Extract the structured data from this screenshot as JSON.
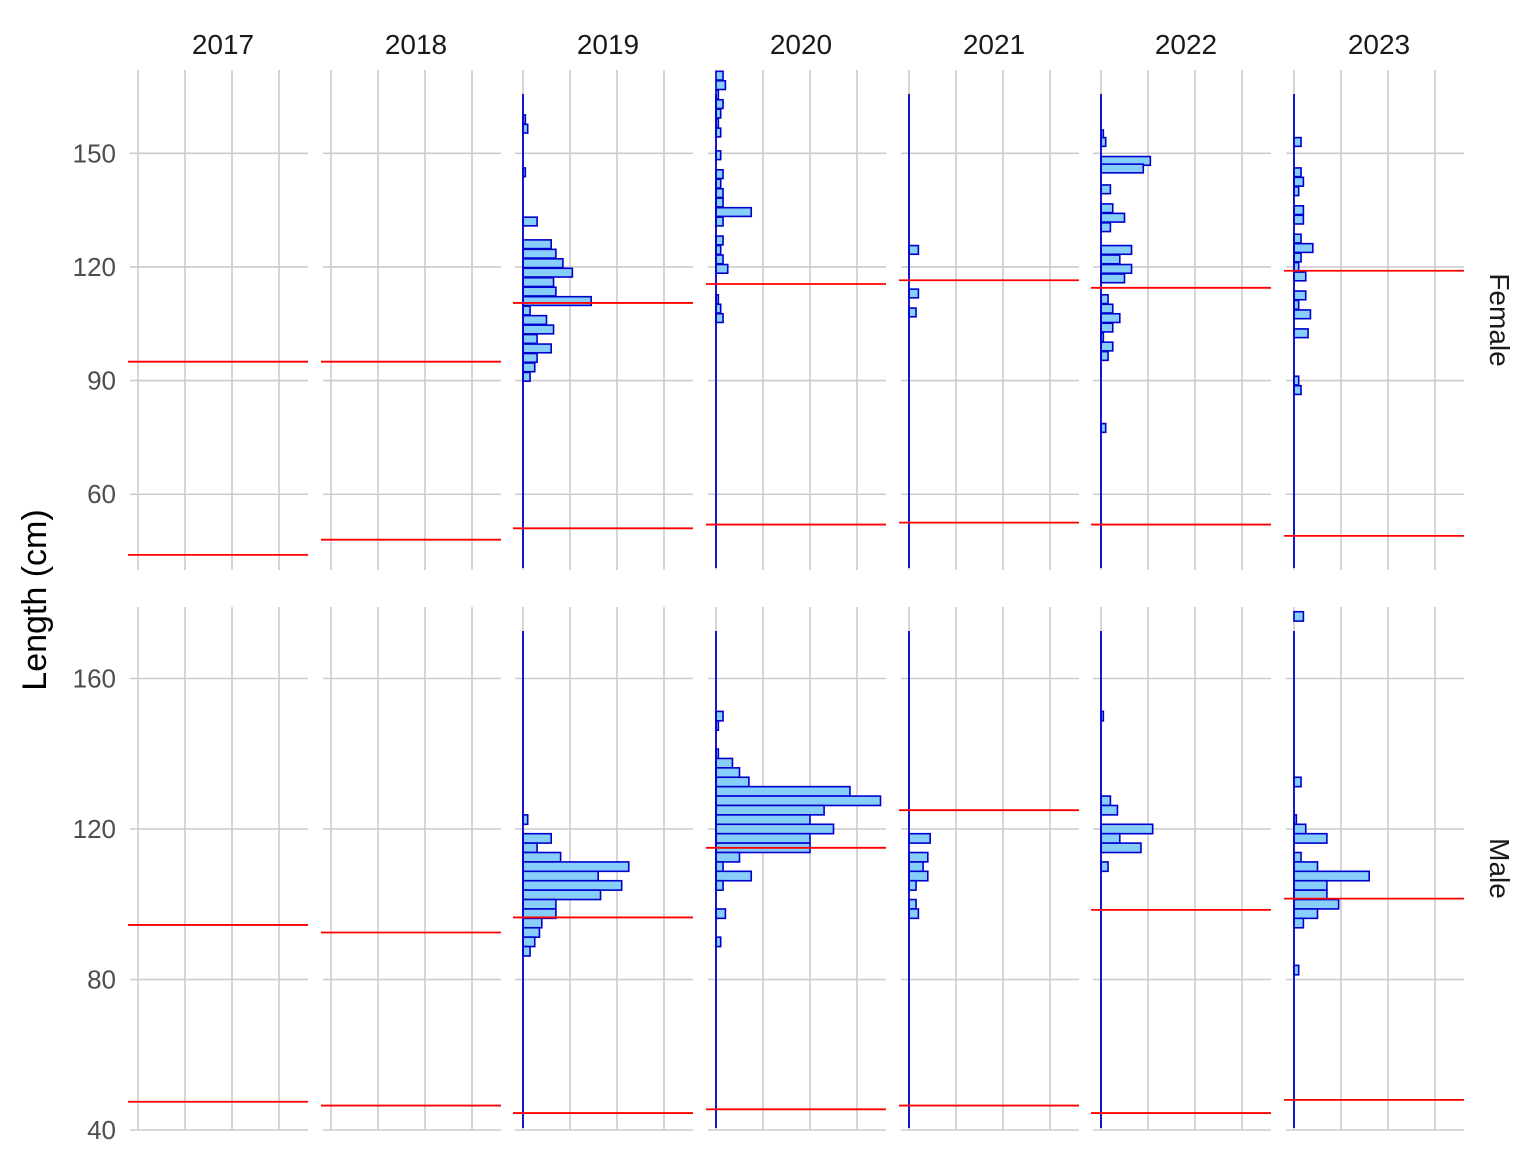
{
  "chart_data": {
    "type": "bar",
    "ylabel": "Length (cm)",
    "xlabel": "",
    "title": "",
    "years": [
      "2017",
      "2018",
      "2019",
      "2020",
      "2021",
      "2022",
      "2023"
    ],
    "rows": [
      {
        "name": "Female",
        "ylim": [
          40,
          172
        ],
        "yticks": [
          60,
          90,
          120,
          150
        ],
        "bin_width": 2.3,
        "panels": [
          {
            "year": "2017",
            "baseline": false,
            "ref_lines": [
              95,
              44
            ],
            "bars": []
          },
          {
            "year": "2018",
            "baseline": false,
            "ref_lines": [
              95,
              48
            ],
            "bars": []
          },
          {
            "year": "2019",
            "baseline": true,
            "ref_lines": [
              110.5,
              51
            ],
            "bars": [
              [
                159,
                0.5
              ],
              [
                156.5,
                1
              ],
              [
                145,
                0.5
              ],
              [
                132,
                3
              ],
              [
                126,
                6
              ],
              [
                123.5,
                7
              ],
              [
                121,
                8.5
              ],
              [
                118.5,
                10.5
              ],
              [
                116,
                6.5
              ],
              [
                113.5,
                7
              ],
              [
                111,
                14.5
              ],
              [
                108.5,
                1.5
              ],
              [
                106,
                5
              ],
              [
                103.5,
                6.5
              ],
              [
                101,
                3
              ],
              [
                98.5,
                6
              ],
              [
                96,
                3
              ],
              [
                93.5,
                2.5
              ],
              [
                91,
                1.5
              ]
            ]
          },
          {
            "year": "2020",
            "baseline": true,
            "ref_lines": [
              115.5,
              52
            ],
            "bars": [
              [
                170.5,
                1.5
              ],
              [
                168,
                2
              ],
              [
                165.5,
                0.5
              ],
              [
                163,
                1.5
              ],
              [
                160.5,
                1
              ],
              [
                158,
                0.5
              ],
              [
                155.5,
                1
              ],
              [
                149.5,
                1
              ],
              [
                144.5,
                1.5
              ],
              [
                142,
                1
              ],
              [
                139.5,
                1.5
              ],
              [
                137,
                1.5
              ],
              [
                134.5,
                7.5
              ],
              [
                132,
                1.5
              ],
              [
                127,
                1.5
              ],
              [
                124.5,
                1
              ],
              [
                122,
                1.5
              ],
              [
                119.5,
                2.5
              ],
              [
                111.5,
                0.5
              ],
              [
                109,
                1
              ],
              [
                106.5,
                1.5
              ]
            ]
          },
          {
            "year": "2021",
            "baseline": true,
            "ref_lines": [
              116.5,
              52.5
            ],
            "bars": [
              [
                124.5,
                2
              ],
              [
                113,
                2
              ],
              [
                108,
                1.5
              ]
            ]
          },
          {
            "year": "2022",
            "baseline": true,
            "ref_lines": [
              114.5,
              52
            ],
            "bars": [
              [
                155,
                0.5
              ],
              [
                153,
                1
              ],
              [
                148,
                10.5
              ],
              [
                146,
                9
              ],
              [
                140.5,
                2
              ],
              [
                135.5,
                2.5
              ],
              [
                133,
                5
              ],
              [
                130.5,
                2
              ],
              [
                124.5,
                6.5
              ],
              [
                122,
                4
              ],
              [
                119.5,
                6.5
              ],
              [
                117,
                5
              ],
              [
                111.5,
                1.5
              ],
              [
                109,
                2.5
              ],
              [
                106.5,
                4
              ],
              [
                104,
                2.5
              ],
              [
                101.5,
                0.5
              ],
              [
                99,
                2.5
              ],
              [
                96.5,
                1.5
              ],
              [
                77.5,
                1
              ]
            ]
          },
          {
            "year": "2023",
            "baseline": true,
            "ref_lines": [
              119,
              49
            ],
            "bars": [
              [
                153,
                1.5
              ],
              [
                145,
                1.5
              ],
              [
                142.5,
                2
              ],
              [
                140,
                1
              ],
              [
                135,
                2
              ],
              [
                132.5,
                2
              ],
              [
                127.5,
                1.5
              ],
              [
                125,
                4
              ],
              [
                122.5,
                1.5
              ],
              [
                120,
                1
              ],
              [
                117.5,
                2.5
              ],
              [
                112.5,
                2.5
              ],
              [
                110,
                1
              ],
              [
                107.5,
                3.5
              ],
              [
                102.5,
                3
              ],
              [
                90,
                1
              ],
              [
                87.5,
                1.5
              ]
            ]
          }
        ]
      },
      {
        "name": "Male",
        "ylim": [
          40,
          179
        ],
        "yticks": [
          40,
          80,
          120,
          160
        ],
        "bin_width": 2.5,
        "panels": [
          {
            "year": "2017",
            "baseline": false,
            "ref_lines": [
              94.5,
              47.5
            ],
            "bars": []
          },
          {
            "year": "2018",
            "baseline": false,
            "ref_lines": [
              92.5,
              46.5
            ],
            "bars": []
          },
          {
            "year": "2019",
            "baseline": true,
            "ref_lines": [
              96.5,
              44.5
            ],
            "bars": [
              [
                122.5,
                1
              ],
              [
                117.5,
                6
              ],
              [
                115,
                3
              ],
              [
                112.5,
                8
              ],
              [
                110,
                22.5
              ],
              [
                107.5,
                16
              ],
              [
                105,
                21
              ],
              [
                102.5,
                16.5
              ],
              [
                100,
                7
              ],
              [
                97.5,
                7
              ],
              [
                95,
                4
              ],
              [
                92.5,
                3.5
              ],
              [
                90,
                2.5
              ],
              [
                87.5,
                1.5
              ]
            ]
          },
          {
            "year": "2020",
            "baseline": true,
            "ref_lines": [
              115,
              45.5
            ],
            "bars": [
              [
                150,
                1.5
              ],
              [
                147.5,
                0.5
              ],
              [
                140,
                0.5
              ],
              [
                137.5,
                3.5
              ],
              [
                135,
                5
              ],
              [
                132.5,
                7
              ],
              [
                130,
                28.5
              ],
              [
                127.5,
                35
              ],
              [
                125,
                23
              ],
              [
                122.5,
                20
              ],
              [
                120,
                25
              ],
              [
                117.5,
                20
              ],
              [
                115,
                20
              ],
              [
                112.5,
                5
              ],
              [
                110,
                1.5
              ],
              [
                107.5,
                7.5
              ],
              [
                105,
                1.5
              ],
              [
                97.5,
                2
              ],
              [
                90,
                1
              ]
            ]
          },
          {
            "year": "2021",
            "baseline": true,
            "ref_lines": [
              125,
              46.5
            ],
            "bars": [
              [
                117.5,
                4.5
              ],
              [
                112.5,
                4
              ],
              [
                110,
                3
              ],
              [
                107.5,
                4
              ],
              [
                105,
                1.5
              ],
              [
                100,
                1.5
              ],
              [
                97.5,
                2
              ]
            ]
          },
          {
            "year": "2022",
            "baseline": true,
            "ref_lines": [
              98.5,
              44.5
            ],
            "bars": [
              [
                150,
                0.5
              ],
              [
                127.5,
                2
              ],
              [
                125,
                3.5
              ],
              [
                120,
                11
              ],
              [
                117.5,
                4
              ],
              [
                115,
                8.5
              ],
              [
                110,
                1.5
              ]
            ]
          },
          {
            "year": "2023",
            "baseline": true,
            "ref_lines": [
              101.5,
              48
            ],
            "bars": [
              [
                176.5,
                2
              ],
              [
                132.5,
                1.5
              ],
              [
                122.5,
                0.5
              ],
              [
                120,
                2.5
              ],
              [
                117.5,
                7
              ],
              [
                112.5,
                1.5
              ],
              [
                110,
                5
              ],
              [
                107.5,
                16
              ],
              [
                105,
                7
              ],
              [
                102.5,
                7
              ],
              [
                100,
                9.5
              ],
              [
                97.5,
                5
              ],
              [
                95,
                2
              ],
              [
                82.5,
                1
              ]
            ]
          }
        ]
      }
    ],
    "colors": {
      "bar_fill": "#87cefa",
      "bar_stroke": "#0000cd",
      "baseline": "#0000cd",
      "ref_line": "#ff0000",
      "grid": "#cccccc"
    }
  }
}
